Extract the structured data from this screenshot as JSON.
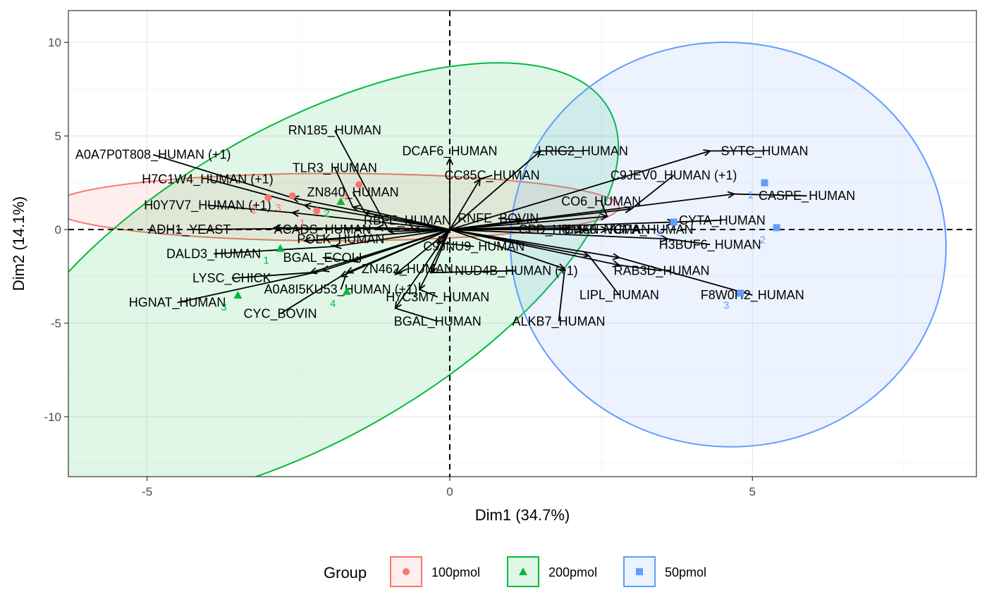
{
  "chart_data": {
    "type": "scatter",
    "subtype": "pca-biplot",
    "xlabel": "Dim1 (34.7%)",
    "ylabel": "Dim2 (14.1%)",
    "xlim": [
      -6.3,
      8.7
    ],
    "ylim": [
      -13.2,
      11.7
    ],
    "xticks": [
      -5,
      0,
      5
    ],
    "yticks": [
      -10,
      -5,
      0,
      5,
      10
    ],
    "grid": true,
    "legend": {
      "title": "Group",
      "position": "bottom",
      "entries": [
        {
          "label": "100pmol",
          "shape": "circle",
          "color": "#F8766D"
        },
        {
          "label": "200pmol",
          "shape": "triangle",
          "color": "#00BA38"
        },
        {
          "label": "50pmol",
          "shape": "square",
          "color": "#619CFF"
        }
      ]
    },
    "groups": [
      {
        "name": "100pmol",
        "color": "#F8766D",
        "shape": "circle",
        "ellipse": {
          "cx": -1.9,
          "cy": 1.2,
          "rx": 4.7,
          "ry": 1.8,
          "angle_deg": 0
        },
        "points": [
          {
            "label": "1",
            "x": -2.2,
            "y": 1.0
          },
          {
            "label": "2",
            "x": -3.0,
            "y": 1.7
          },
          {
            "label": "3",
            "x": -2.6,
            "y": 1.8
          },
          {
            "label": "4",
            "x": -1.5,
            "y": 2.4
          }
        ]
      },
      {
        "name": "200pmol",
        "color": "#00BA38",
        "shape": "triangle",
        "ellipse": {
          "cx": -2.4,
          "cy": -2.9,
          "rx": 5.8,
          "ry": 8.3,
          "angle_deg": 30
        },
        "points": [
          {
            "label": "1",
            "x": -2.8,
            "y": -1.0
          },
          {
            "label": "2",
            "x": -1.8,
            "y": 1.5
          },
          {
            "label": "3",
            "x": -3.5,
            "y": -3.5
          },
          {
            "label": "4",
            "x": -1.7,
            "y": -3.3
          }
        ]
      },
      {
        "name": "50pmol",
        "color": "#619CFF",
        "shape": "square",
        "ellipse": {
          "cx": 4.6,
          "cy": -0.8,
          "rx": 3.6,
          "ry": 10.8,
          "angle_deg": -5
        },
        "points": [
          {
            "label": "1",
            "x": 5.2,
            "y": 2.5
          },
          {
            "label": "2",
            "x": 5.4,
            "y": 0.1
          },
          {
            "label": "3",
            "x": 4.8,
            "y": -3.4
          },
          {
            "label": "4",
            "x": 3.7,
            "y": 0.4
          }
        ]
      }
    ],
    "variables": [
      {
        "label": "RN185_HUMAN",
        "x": -1.0,
        "y": -0.1,
        "lx": -1.9,
        "ly": 5.3
      },
      {
        "label": "A0A7P0T808_HUMAN (+1)",
        "x": -2.6,
        "y": 1.7,
        "lx": -4.9,
        "ly": 4.0
      },
      {
        "label": "H7C1W4_HUMAN (+1)",
        "x": -2.4,
        "y": 1.3,
        "lx": -4.0,
        "ly": 2.7
      },
      {
        "label": "TLR3_HUMAN",
        "x": -1.6,
        "y": 1.2,
        "lx": -1.9,
        "ly": 3.3
      },
      {
        "label": "ZN840_HUMAN",
        "x": -1.4,
        "y": 0.9,
        "lx": -1.6,
        "ly": 2.0
      },
      {
        "label": "H0Y7V7_HUMAN (+1)",
        "x": -2.6,
        "y": 0.9,
        "lx": -4.0,
        "ly": 1.3
      },
      {
        "label": "ADH1_YEAST",
        "x": -1.2,
        "y": 0.1,
        "lx": -4.3,
        "ly": 0.0
      },
      {
        "label": "ACADS_HUMAN",
        "x": -2.9,
        "y": 0.1,
        "lx": -2.1,
        "ly": 0.0
      },
      {
        "label": "POLK_HUMAN",
        "x": -2.4,
        "y": -0.6,
        "lx": -1.8,
        "ly": -0.5
      },
      {
        "label": "DALD3_HUMAN",
        "x": -1.9,
        "y": -0.9,
        "lx": -3.9,
        "ly": -1.3
      },
      {
        "label": "BGAL_ECOLI",
        "x": -1.6,
        "y": -1.7,
        "lx": -2.1,
        "ly": -1.5
      },
      {
        "label": "LYSC_CHICK",
        "x": -2.3,
        "y": -2.3,
        "lx": -3.6,
        "ly": -2.6
      },
      {
        "label": "A0A8I5KU53_HUMAN (+1)",
        "x": -1.7,
        "y": -2.3,
        "lx": -1.8,
        "ly": -3.2
      },
      {
        "label": "HGNAT_HUMAN",
        "x": -2.1,
        "y": -2.2,
        "lx": -4.5,
        "ly": -3.9
      },
      {
        "label": "CYC_BOVIN",
        "x": -1.8,
        "y": -2.5,
        "lx": -2.8,
        "ly": -4.5
      },
      {
        "label": "RBFE_HUMAN",
        "x": -0.6,
        "y": 0.0,
        "lx": -0.7,
        "ly": 0.5
      },
      {
        "label": "C9JNU9_HUMAN",
        "x": -0.2,
        "y": -0.7,
        "lx": 0.4,
        "ly": -0.9
      },
      {
        "label": "ZN462_HUMAN",
        "x": -0.9,
        "y": -2.4,
        "lx": -0.7,
        "ly": -2.1
      },
      {
        "label": "NUD4B_HUMAN (+1)",
        "x": -0.3,
        "y": -2.3,
        "lx": 1.1,
        "ly": -2.2
      },
      {
        "label": "H7C3M7_HUMAN",
        "x": -0.5,
        "y": -3.2,
        "lx": -0.2,
        "ly": -3.6
      },
      {
        "label": "BGAL_HUMAN",
        "x": -0.9,
        "y": -4.2,
        "lx": -0.2,
        "ly": -4.9
      },
      {
        "label": "DCAF6_HUMAN",
        "x": 0.0,
        "y": 3.8,
        "lx": 0.0,
        "ly": 4.2
      },
      {
        "label": "CC85C_HUMAN",
        "x": 0.5,
        "y": 2.7,
        "lx": 0.7,
        "ly": 2.9
      },
      {
        "label": "LRIG2_HUMAN",
        "x": 1.5,
        "y": 4.2,
        "lx": 2.2,
        "ly": 4.2
      },
      {
        "label": "RNFE_BOVIN",
        "x": 1.2,
        "y": 0.5,
        "lx": 0.8,
        "ly": 0.6
      },
      {
        "label": "CO6_HUMAN",
        "x": 2.6,
        "y": 0.7,
        "lx": 2.5,
        "ly": 1.5
      },
      {
        "label": "C9JEV0_HUMAN (+1)",
        "x": 3.0,
        "y": 1.1,
        "lx": 3.7,
        "ly": 2.9
      },
      {
        "label": "SYTC_HUMAN",
        "x": 4.3,
        "y": 4.2,
        "lx": 5.2,
        "ly": 4.2
      },
      {
        "label": "CASPE_HUMAN",
        "x": 4.7,
        "y": 1.9,
        "lx": 5.9,
        "ly": 1.8
      },
      {
        "label": "CYTA_HUMAN",
        "x": 3.7,
        "y": 0.4,
        "lx": 4.5,
        "ly": 0.5
      },
      {
        "label": "CPD_HUMAN",
        "x": 2.0,
        "y": 0.1,
        "lx": 1.8,
        "ly": 0.0
      },
      {
        "label": "CH60_HUMAN",
        "x": 2.2,
        "y": 0.0,
        "lx": 2.6,
        "ly": 0.0
      },
      {
        "label": "VGPA_HUMAN",
        "x": 2.6,
        "y": 0.0,
        "lx": 3.3,
        "ly": 0.0
      },
      {
        "label": "H3BUF6_HUMAN",
        "x": 3.6,
        "y": -0.5,
        "lx": 4.3,
        "ly": -0.8
      },
      {
        "label": "RAB3D_HUMAN",
        "x": 2.8,
        "y": -1.9,
        "lx": 3.5,
        "ly": -2.2
      },
      {
        "label": "LIPL_HUMAN",
        "x": 2.3,
        "y": -1.4,
        "lx": 2.8,
        "ly": -3.5
      },
      {
        "label": "F8W0H2_HUMAN",
        "x": 2.8,
        "y": -1.5,
        "lx": 5.0,
        "ly": -3.5
      },
      {
        "label": "ALKB7_HUMAN",
        "x": 1.9,
        "y": -2.1,
        "lx": 1.8,
        "ly": -4.9
      }
    ]
  }
}
